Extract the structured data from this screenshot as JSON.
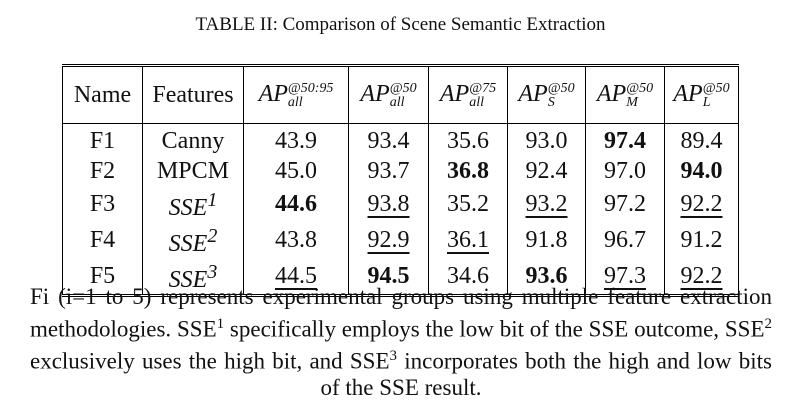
{
  "title": "TABLE II: Comparison of Scene Semantic Extraction",
  "table": {
    "header": [
      "Name",
      "Features",
      {
        "base": "AP",
        "sup": "@50:95",
        "sub": "all"
      },
      {
        "base": "AP",
        "sup": "@50",
        "sub": "all"
      },
      {
        "base": "AP",
        "sup": "@75",
        "sub": "all"
      },
      {
        "base": "AP",
        "sup": "@50",
        "sub": "S"
      },
      {
        "base": "AP",
        "sup": "@50",
        "sub": "M"
      },
      {
        "base": "AP",
        "sup": "@50",
        "sub": "L"
      }
    ],
    "rows": [
      [
        "F1",
        "Canny",
        "43.9",
        "93.4",
        "35.6",
        "93.0",
        {
          "text": "97.4",
          "bold": true
        },
        "89.4"
      ],
      [
        "F2",
        "MPCM",
        "45.0",
        "93.7",
        {
          "text": "36.8",
          "bold": true
        },
        "92.4",
        "97.0",
        {
          "text": "94.0",
          "bold": true
        }
      ],
      [
        "F3",
        {
          "base": "SSE",
          "sup": "1"
        },
        {
          "text": "44.6",
          "bold": true
        },
        {
          "text": "93.8",
          "underline": true
        },
        "35.2",
        {
          "text": "93.2",
          "underline": true
        },
        "97.2",
        {
          "text": "92.2",
          "underline": true
        }
      ],
      [
        "F4",
        {
          "base": "SSE",
          "sup": "2"
        },
        "43.8",
        {
          "text": "92.9",
          "underline": true
        },
        {
          "text": "36.1",
          "underline": true
        },
        "91.8",
        "96.7",
        "91.2"
      ],
      [
        "F5",
        {
          "base": "SSE",
          "sup": "3"
        },
        {
          "text": "44.5",
          "underline": true
        },
        {
          "text": "94.5",
          "bold": true
        },
        "34.6",
        {
          "text": "93.6",
          "bold": true
        },
        {
          "text": "97.3",
          "underline": true
        },
        {
          "text": "92.2",
          "underline": true
        }
      ]
    ]
  },
  "caption": [
    {
      "text": "Fi (i=1 to 5) represents experimental groups using multiple feature extraction methodologies. SSE"
    },
    {
      "sup": "1"
    },
    {
      "text": " specifically employs the low bit of the SSE outcome, SSE"
    },
    {
      "sup": "2"
    },
    {
      "text": " exclusively uses the high bit, and SSE"
    },
    {
      "sup": "3"
    },
    {
      "text": " incorporates both the high and low bits of the SSE result."
    }
  ]
}
